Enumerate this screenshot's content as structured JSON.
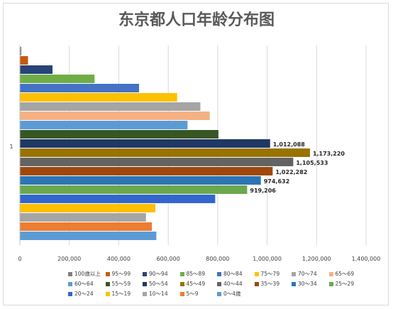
{
  "chart_data": {
    "type": "bar",
    "orientation": "horizontal",
    "title": "东京都人口年龄分布图",
    "category_label": "1",
    "xlim": [
      0,
      1400000
    ],
    "x_ticks": [
      "0",
      "200,000",
      "400,000",
      "600,000",
      "800,000",
      "1,000,000",
      "1,200,000",
      "1,400,000"
    ],
    "grid": "vertical",
    "legend_position": "bottom",
    "series": [
      {
        "name": "100歳以上",
        "value": 6000,
        "color": "#7f7f7f"
      },
      {
        "name": "95～99",
        "value": 33000,
        "color": "#c55a11"
      },
      {
        "name": "90～94",
        "value": 132000,
        "color": "#264478"
      },
      {
        "name": "85～89",
        "value": 302000,
        "color": "#70ad47"
      },
      {
        "name": "80～84",
        "value": 482000,
        "color": "#4472c4"
      },
      {
        "name": "75～79",
        "value": 636000,
        "color": "#ffc000"
      },
      {
        "name": "70～74",
        "value": 730000,
        "color": "#a5a5a5"
      },
      {
        "name": "65～69",
        "value": 768000,
        "color": "#f4b183"
      },
      {
        "name": "60～64",
        "value": 678000,
        "color": "#5b9bd5"
      },
      {
        "name": "55～59",
        "value": 803000,
        "color": "#375623"
      },
      {
        "name": "50～54",
        "value": 1012088,
        "label": "1,012,088",
        "color": "#203864"
      },
      {
        "name": "45～49",
        "value": 1173220,
        "label": "1,173,220",
        "color": "#997300"
      },
      {
        "name": "40～44",
        "value": 1105533,
        "label": "1,105,533",
        "color": "#636363"
      },
      {
        "name": "35～39",
        "value": 1022282,
        "label": "1,022,282",
        "color": "#9e480e"
      },
      {
        "name": "30～34",
        "value": 974632,
        "label": "974,632",
        "color": "#2e75b6"
      },
      {
        "name": "25～29",
        "value": 919206,
        "label": "919,206",
        "color": "#6aa84f"
      },
      {
        "name": "20～24",
        "value": 790000,
        "color": "#3366cc"
      },
      {
        "name": "15～19",
        "value": 548000,
        "color": "#ffc000"
      },
      {
        "name": "10～14",
        "value": 510000,
        "color": "#a5a5a5"
      },
      {
        "name": "5～9",
        "value": 534000,
        "color": "#ed7d31"
      },
      {
        "name": "0～4歳",
        "value": 552000,
        "color": "#5b9bd5"
      }
    ]
  }
}
